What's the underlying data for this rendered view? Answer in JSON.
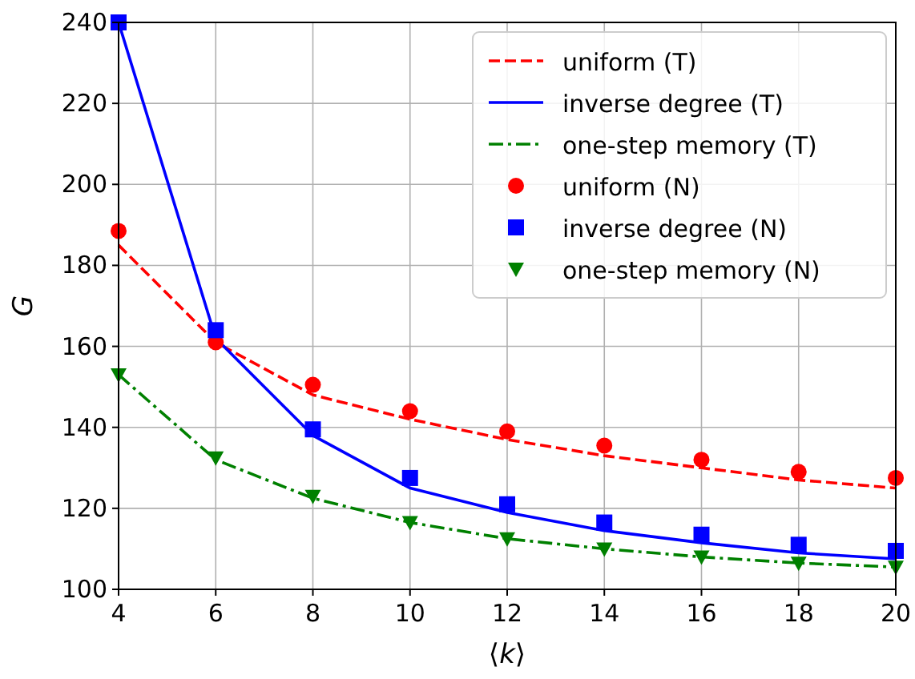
{
  "chart_data": {
    "type": "line",
    "xlabel": "⟨k⟩",
    "ylabel": "G",
    "x": [
      4,
      6,
      8,
      10,
      12,
      14,
      16,
      18,
      20
    ],
    "xlim": [
      4,
      20
    ],
    "xticks": [
      4,
      6,
      8,
      10,
      12,
      14,
      16,
      18,
      20
    ],
    "ylim": [
      100,
      240
    ],
    "yticks": [
      100,
      120,
      140,
      160,
      180,
      200,
      220,
      240
    ],
    "grid": true,
    "legend": "top right",
    "series": [
      {
        "name": "uniform (T)",
        "color": "#ff0000",
        "line_style": "dashed",
        "values": [
          185,
          161,
          148,
          142,
          137,
          133,
          130,
          127,
          125
        ]
      },
      {
        "name": "inverse degree (T)",
        "color": "#0000ff",
        "line_style": "solid",
        "values": [
          240,
          162,
          138,
          125,
          119,
          114.5,
          111.5,
          109,
          107.5
        ]
      },
      {
        "name": "one-step memory (T)",
        "color": "#008000",
        "line_style": "dashdot",
        "values": [
          153,
          132,
          122.5,
          116.5,
          112.5,
          110,
          108,
          106.5,
          105.5
        ]
      },
      {
        "name": "uniform (N)",
        "type": "scatter",
        "color": "#ff0000",
        "marker": "circle",
        "values": [
          188.5,
          161,
          150.5,
          144,
          139,
          135.5,
          132,
          129,
          127.5
        ]
      },
      {
        "name": "inverse degree (N)",
        "type": "scatter",
        "color": "#0000ff",
        "marker": "square",
        "values": [
          240,
          164,
          139.5,
          127.5,
          121,
          116.5,
          113.5,
          111,
          109.5
        ]
      },
      {
        "name": "one-step memory (N)",
        "type": "scatter",
        "color": "#008000",
        "marker": "triangle",
        "values": [
          153,
          132.5,
          123,
          116.5,
          112.5,
          110,
          108,
          106.5,
          105.5
        ]
      }
    ]
  }
}
